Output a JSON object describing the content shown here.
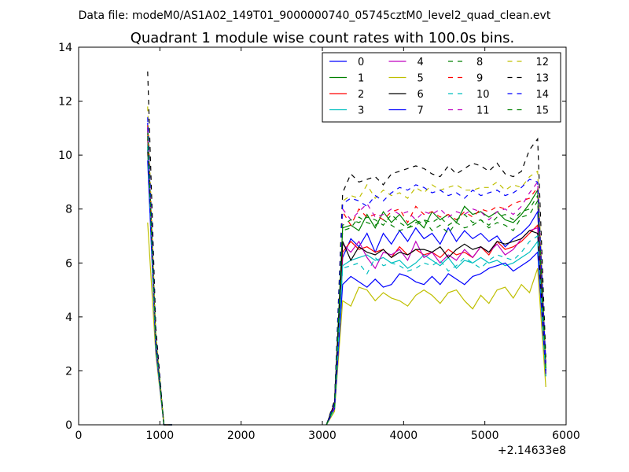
{
  "figure": {
    "suptitle": "Data file: modeM0/AS1A02_149T01_9000000740_05745cztM0_level2_quad_clean.evt",
    "title": "Quadrant 1 module wise count rates with 100.0s bins.",
    "x_offset_label": "+2.14633e8"
  },
  "chart_data": {
    "type": "line",
    "title": "Quadrant 1 module wise count rates with 100.0s bins.",
    "xlabel": "",
    "ylabel": "",
    "xlim": [
      0,
      6000
    ],
    "ylim": [
      0,
      14
    ],
    "x_ticks": [
      0,
      1000,
      2000,
      3000,
      4000,
      5000,
      6000
    ],
    "y_ticks": [
      0,
      2,
      4,
      6,
      8,
      10,
      12,
      14
    ],
    "x_tick_labels": [
      "0",
      "1000",
      "2000",
      "3000",
      "4000",
      "5000",
      "6000"
    ],
    "y_tick_labels": [
      "0",
      "2",
      "4",
      "6",
      "8",
      "10",
      "12",
      "14"
    ],
    "x_offset": 214633000,
    "grid": false,
    "legend_position": "top-right",
    "legend_columns": 4,
    "x": [
      850,
      950,
      1050,
      1150,
      3050,
      3150,
      3250,
      3350,
      3450,
      3550,
      3650,
      3750,
      3850,
      3950,
      4050,
      4150,
      4250,
      4350,
      4450,
      4550,
      4650,
      4750,
      4850,
      4950,
      5050,
      5150,
      5250,
      5350,
      5450,
      5550,
      5650,
      5750
    ],
    "gap_after_x": 1150,
    "series": [
      {
        "name": "0",
        "color": "#0000ff",
        "dash": "solid",
        "values": [
          11.2,
          3.0,
          0,
          0,
          0,
          0.8,
          6.2,
          6.9,
          6.6,
          7.1,
          6.4,
          7.1,
          6.7,
          7.2,
          6.8,
          7.3,
          6.9,
          7.1,
          6.7,
          7.3,
          6.8,
          7.2,
          6.9,
          7.1,
          6.8,
          7.0,
          6.6,
          6.9,
          7.1,
          7.4,
          7.9,
          2.0
        ]
      },
      {
        "name": "1",
        "color": "#008000",
        "dash": "solid",
        "values": [
          11.0,
          3.2,
          0,
          0,
          0,
          0.8,
          7.3,
          7.4,
          7.2,
          7.8,
          7.3,
          7.9,
          7.5,
          7.8,
          7.4,
          7.6,
          7.3,
          7.9,
          7.6,
          7.8,
          7.5,
          8.1,
          7.8,
          7.9,
          7.7,
          7.9,
          7.6,
          7.5,
          7.8,
          8.2,
          8.7,
          2.2
        ]
      },
      {
        "name": "2",
        "color": "#ff0000",
        "dash": "solid",
        "values": [
          10.6,
          3.0,
          0,
          0,
          0,
          0.7,
          6.4,
          6.8,
          6.5,
          6.6,
          6.4,
          6.5,
          6.2,
          6.6,
          6.3,
          6.5,
          6.3,
          6.4,
          6.2,
          6.5,
          6.3,
          6.4,
          6.2,
          6.6,
          6.3,
          6.8,
          6.5,
          6.6,
          6.8,
          7.1,
          7.4,
          1.9
        ]
      },
      {
        "name": "3",
        "color": "#00bfbf",
        "dash": "solid",
        "values": [
          10.4,
          3.0,
          0,
          0,
          0,
          0.6,
          5.9,
          6.1,
          6.2,
          6.3,
          6.1,
          6.2,
          6.0,
          6.1,
          5.8,
          6.0,
          6.3,
          6.1,
          5.9,
          6.2,
          5.8,
          6.1,
          6.0,
          6.2,
          6.0,
          6.1,
          5.9,
          6.0,
          6.2,
          6.4,
          6.8,
          1.8
        ]
      },
      {
        "name": "4",
        "color": "#bf00bf",
        "dash": "solid",
        "values": [
          10.8,
          3.1,
          0,
          0,
          0,
          0.7,
          6.7,
          6.4,
          6.8,
          6.2,
          5.8,
          6.4,
          6.3,
          6.5,
          6.1,
          6.8,
          6.2,
          6.4,
          6.0,
          6.3,
          6.1,
          6.5,
          6.2,
          6.6,
          6.4,
          6.7,
          6.3,
          6.5,
          6.9,
          7.2,
          7.3,
          1.8
        ]
      },
      {
        "name": "5",
        "color": "#bfbf00",
        "dash": "solid",
        "values": [
          7.5,
          2.6,
          0,
          0,
          0,
          0.5,
          4.6,
          4.4,
          5.1,
          5.0,
          4.6,
          4.9,
          4.7,
          4.6,
          4.4,
          4.8,
          5.0,
          4.8,
          4.5,
          4.9,
          5.0,
          4.6,
          4.3,
          4.8,
          4.5,
          5.0,
          5.1,
          4.7,
          5.2,
          4.9,
          5.8,
          1.4
        ]
      },
      {
        "name": "6",
        "color": "#000000",
        "dash": "solid",
        "values": [
          10.2,
          3.0,
          0,
          0,
          0,
          0.8,
          6.8,
          6.1,
          6.6,
          6.4,
          6.3,
          6.5,
          6.2,
          6.4,
          6.3,
          6.5,
          6.5,
          6.4,
          6.6,
          6.2,
          6.5,
          6.7,
          6.5,
          6.6,
          6.4,
          6.8,
          6.7,
          6.8,
          6.9,
          7.2,
          7.1,
          2.0
        ]
      },
      {
        "name": "7",
        "color": "#0000ff",
        "dash": "solid",
        "values": [
          9.8,
          2.8,
          0,
          0,
          0,
          0.6,
          5.2,
          5.5,
          5.3,
          5.1,
          5.4,
          5.1,
          5.2,
          5.6,
          5.5,
          5.3,
          5.2,
          5.5,
          5.2,
          5.6,
          5.4,
          5.2,
          5.5,
          5.6,
          5.8,
          5.9,
          6.0,
          5.7,
          5.9,
          6.1,
          6.4,
          1.9
        ]
      },
      {
        "name": "8",
        "color": "#008000",
        "dash": "dashed",
        "values": [
          10.9,
          3.2,
          0,
          0,
          0,
          0.8,
          7.2,
          7.3,
          7.7,
          7.5,
          7.4,
          7.6,
          7.4,
          7.2,
          7.3,
          7.5,
          7.6,
          7.2,
          7.4,
          7.1,
          7.5,
          7.3,
          7.4,
          7.6,
          7.3,
          7.5,
          7.4,
          7.2,
          7.7,
          7.8,
          8.3,
          2.1
        ]
      },
      {
        "name": "9",
        "color": "#ff0000",
        "dash": "dashed",
        "values": [
          11.1,
          3.3,
          0,
          0,
          0,
          0.8,
          7.9,
          7.4,
          8.0,
          7.7,
          7.8,
          7.6,
          7.9,
          8.0,
          7.5,
          8.1,
          7.8,
          7.9,
          7.7,
          7.8,
          7.6,
          7.9,
          7.7,
          8.0,
          7.9,
          8.1,
          8.0,
          8.2,
          8.3,
          8.4,
          8.8,
          2.2
        ]
      },
      {
        "name": "10",
        "color": "#00bfbf",
        "dash": "dashed",
        "values": [
          10.3,
          2.9,
          0,
          0,
          0,
          0.6,
          5.8,
          5.9,
          6.0,
          5.6,
          6.2,
          5.9,
          6.0,
          5.9,
          5.7,
          5.8,
          6.0,
          5.9,
          6.1,
          5.7,
          5.9,
          6.2,
          6.0,
          5.8,
          6.1,
          6.3,
          6.2,
          6.1,
          6.4,
          6.8,
          7.0,
          1.8
        ]
      },
      {
        "name": "11",
        "color": "#bf00bf",
        "dash": "dashed",
        "values": [
          11.0,
          3.2,
          0,
          0,
          0,
          0.8,
          8.0,
          7.6,
          7.9,
          8.2,
          7.7,
          7.8,
          8.0,
          7.8,
          7.9,
          7.6,
          7.9,
          7.8,
          8.0,
          7.7,
          7.9,
          7.8,
          8.0,
          7.9,
          7.6,
          7.9,
          8.0,
          7.8,
          8.1,
          8.6,
          9.0,
          2.3
        ]
      },
      {
        "name": "12",
        "color": "#bfbf00",
        "dash": "dashed",
        "values": [
          11.8,
          3.4,
          0,
          0,
          0,
          0.9,
          8.3,
          8.5,
          8.4,
          8.9,
          8.4,
          8.7,
          8.5,
          8.6,
          8.4,
          8.8,
          8.6,
          8.9,
          8.7,
          8.8,
          8.9,
          8.7,
          8.7,
          8.8,
          8.8,
          9.0,
          8.7,
          8.9,
          8.8,
          9.2,
          9.4,
          2.3
        ]
      },
      {
        "name": "13",
        "color": "#000000",
        "dash": "dashed",
        "values": [
          13.1,
          3.6,
          0,
          0,
          0,
          0.9,
          8.6,
          9.3,
          9.0,
          9.1,
          9.2,
          8.9,
          9.3,
          9.4,
          9.5,
          9.6,
          9.5,
          9.3,
          9.2,
          9.6,
          9.3,
          9.5,
          9.7,
          9.6,
          9.4,
          9.7,
          9.3,
          9.2,
          9.4,
          10.2,
          10.6,
          2.5
        ]
      },
      {
        "name": "14",
        "color": "#0000ff",
        "dash": "dashed",
        "values": [
          11.4,
          3.3,
          0,
          0,
          0,
          0.8,
          8.2,
          8.4,
          8.3,
          8.1,
          8.5,
          8.3,
          8.6,
          8.8,
          8.7,
          8.9,
          8.8,
          8.6,
          8.7,
          8.5,
          8.6,
          8.4,
          8.7,
          8.5,
          8.6,
          8.7,
          8.5,
          8.6,
          8.8,
          9.1,
          9.0,
          2.3
        ]
      },
      {
        "name": "15",
        "color": "#008000",
        "dash": "dashed",
        "values": [
          10.7,
          3.1,
          0,
          0,
          0,
          0.7,
          7.4,
          7.6,
          7.5,
          7.7,
          7.6,
          7.4,
          7.8,
          7.5,
          7.3,
          7.4,
          7.6,
          7.5,
          7.7,
          7.4,
          7.6,
          7.8,
          7.5,
          7.6,
          7.4,
          7.7,
          7.8,
          7.6,
          7.9,
          8.0,
          8.5,
          2.1
        ]
      }
    ]
  }
}
